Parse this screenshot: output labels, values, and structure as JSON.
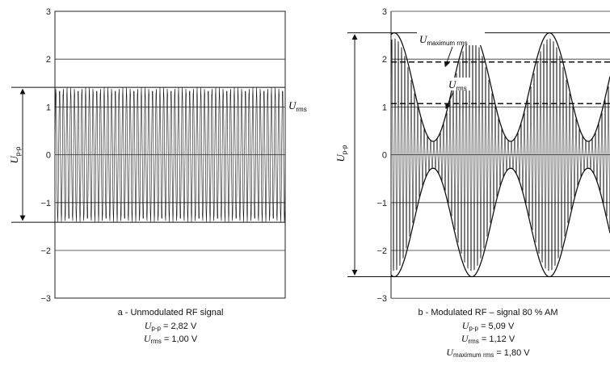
{
  "chart_data": [
    {
      "type": "line",
      "ylim": [
        -3,
        3
      ],
      "yticks": [
        "3",
        "2",
        "1",
        "0",
        "−1",
        "−2",
        "−3"
      ],
      "grid": true,
      "signal": {
        "kind": "unmodulated_rf",
        "amplitude": 1.41
      },
      "levels": [
        {
          "name": "U",
          "sub": "rms",
          "value": 1.41
        },
        {
          "name": "U",
          "sub": "rms",
          "value": -1.41
        }
      ],
      "arrow_label": {
        "name": "U",
        "sub": "p-p"
      },
      "rms_label": {
        "name": "U",
        "sub": "rms"
      },
      "caption": {
        "title": "a - Unmodulated RF signal",
        "line1": {
          "name": "U",
          "sub": "p-p",
          "value": " = 2,82 V"
        },
        "line2": {
          "name": "U",
          "sub": "rms",
          "value": " = 1,00 V"
        }
      }
    },
    {
      "type": "line",
      "ylim": [
        -3,
        3
      ],
      "yticks": [
        "3",
        "2",
        "1",
        "0",
        "−1",
        "−2",
        "−3"
      ],
      "grid": true,
      "signal": {
        "kind": "am_modulated_rf",
        "modulation_depth_percent": 80,
        "peak": 2.55,
        "trough": 0.28
      },
      "dashed_levels": [
        1.94,
        1.07
      ],
      "arrow_label": {
        "name": "U",
        "sub": "p-p"
      },
      "max_rms_label": {
        "name": "U",
        "sub": "maximum rms"
      },
      "rms_label": {
        "name": "U",
        "sub": "rms"
      },
      "caption": {
        "title": "b  - Modulated RF – signal 80 % AM",
        "line1": {
          "name": "U",
          "sub": "p-p",
          "value": " = 5,09 V"
        },
        "line2": {
          "name": "U",
          "sub": "rms",
          "value": " = 1,12 V"
        },
        "line3": {
          "name": "U",
          "sub": "maximum rms",
          "value": " = 1,80 V"
        }
      }
    }
  ]
}
